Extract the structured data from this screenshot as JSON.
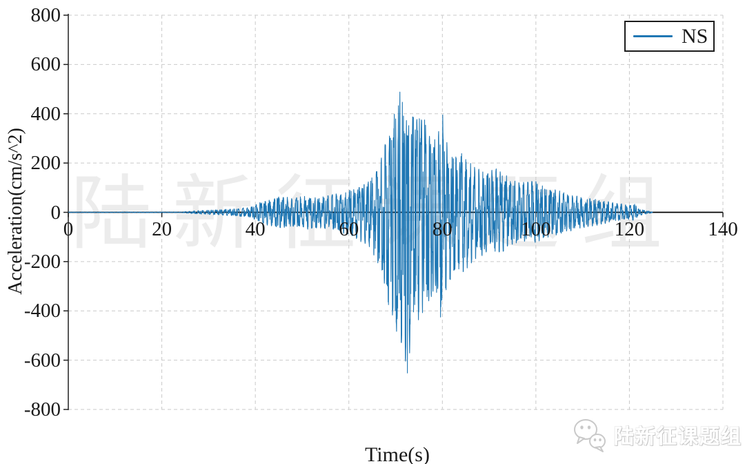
{
  "watermark": {
    "text": "陆新征课题组"
  },
  "footer": {
    "brand_text": "陆新征课题组",
    "icon": "wechat-icon"
  },
  "legend": {
    "label": "NS"
  },
  "chart_data": {
    "type": "line",
    "title": "",
    "xlabel": "Time(s)",
    "ylabel": "Acceleration(cm/s^2)",
    "xlim": [
      0,
      140
    ],
    "ylim": [
      -800,
      800
    ],
    "xticks": [
      0,
      20,
      40,
      60,
      80,
      100,
      120,
      140
    ],
    "yticks": [
      800,
      600,
      400,
      200,
      0,
      -200,
      -400,
      -600,
      -800
    ],
    "grid": "dashed",
    "grid_color": "#c9c9c9",
    "axis_color": "#000000",
    "legend_position": "upper right",
    "series": [
      {
        "name": "NS",
        "color": "#1f77b4"
      }
    ],
    "signal": {
      "description": "Seismic ground-motion NS acceleration record; quiet until ~27 s, growing tremor 40-67 s, main shock burst 68-82 s (peak +490, trough -650 cm/s^2 near 71-73 s), gradual coda decay ending ~125 s",
      "t_start": 0,
      "t_end": 125,
      "dt": 0.04,
      "peak_positive": {
        "t": 70.9,
        "value": 490
      },
      "peak_negative": {
        "t": 72.5,
        "value": -650
      },
      "notable_spikes": [
        [
          70.9,
          488
        ],
        [
          71.3,
          -495
        ],
        [
          72.5,
          -652
        ],
        [
          73.8,
          385
        ],
        [
          75.1,
          380
        ],
        [
          76.2,
          375
        ],
        [
          79.6,
          -425
        ],
        [
          80.2,
          295
        ]
      ],
      "envelope_pos": [
        [
          0,
          1
        ],
        [
          24,
          1.5
        ],
        [
          27,
          6
        ],
        [
          31,
          10
        ],
        [
          35,
          14
        ],
        [
          39,
          22
        ],
        [
          42,
          50
        ],
        [
          45,
          65
        ],
        [
          48,
          60
        ],
        [
          51,
          70
        ],
        [
          54,
          65
        ],
        [
          57,
          75
        ],
        [
          60,
          95
        ],
        [
          63,
          120
        ],
        [
          65,
          150
        ],
        [
          67,
          230
        ],
        [
          68.5,
          330
        ],
        [
          70,
          430
        ],
        [
          71,
          490
        ],
        [
          72,
          440
        ],
        [
          73,
          390
        ],
        [
          74,
          400
        ],
        [
          75,
          395
        ],
        [
          76,
          385
        ],
        [
          77,
          330
        ],
        [
          78,
          300
        ],
        [
          79,
          310
        ],
        [
          80,
          420
        ],
        [
          80.8,
          300
        ],
        [
          82,
          250
        ],
        [
          84,
          255
        ],
        [
          86,
          205
        ],
        [
          88,
          175
        ],
        [
          90,
          165
        ],
        [
          92,
          195
        ],
        [
          94,
          150
        ],
        [
          96,
          130
        ],
        [
          98,
          125
        ],
        [
          100,
          135
        ],
        [
          102,
          110
        ],
        [
          104,
          95
        ],
        [
          106,
          85
        ],
        [
          108,
          75
        ],
        [
          110,
          65
        ],
        [
          112,
          58
        ],
        [
          114,
          50
        ],
        [
          116,
          42
        ],
        [
          118,
          36
        ],
        [
          120,
          30
        ],
        [
          121,
          38
        ],
        [
          122,
          14
        ],
        [
          123.5,
          7
        ],
        [
          125,
          2
        ]
      ],
      "envelope_neg": [
        [
          0,
          1
        ],
        [
          24,
          1.5
        ],
        [
          27,
          6
        ],
        [
          31,
          10
        ],
        [
          35,
          14
        ],
        [
          39,
          22
        ],
        [
          42,
          50
        ],
        [
          45,
          65
        ],
        [
          48,
          60
        ],
        [
          51,
          70
        ],
        [
          54,
          65
        ],
        [
          57,
          75
        ],
        [
          60,
          95
        ],
        [
          63,
          125
        ],
        [
          65,
          160
        ],
        [
          67,
          260
        ],
        [
          68.5,
          400
        ],
        [
          70,
          500
        ],
        [
          71.5,
          560
        ],
        [
          72.6,
          650
        ],
        [
          73.5,
          500
        ],
        [
          74.5,
          460
        ],
        [
          75.5,
          430
        ],
        [
          76.5,
          400
        ],
        [
          77.5,
          360
        ],
        [
          78.5,
          330
        ],
        [
          79.5,
          430
        ],
        [
          80.5,
          350
        ],
        [
          82,
          270
        ],
        [
          84,
          260
        ],
        [
          86,
          215
        ],
        [
          88,
          185
        ],
        [
          90,
          165
        ],
        [
          92,
          175
        ],
        [
          94,
          150
        ],
        [
          96,
          135
        ],
        [
          98,
          125
        ],
        [
          100,
          125
        ],
        [
          102,
          105
        ],
        [
          104,
          95
        ],
        [
          106,
          88
        ],
        [
          108,
          76
        ],
        [
          110,
          66
        ],
        [
          112,
          58
        ],
        [
          114,
          50
        ],
        [
          116,
          42
        ],
        [
          118,
          36
        ],
        [
          120,
          30
        ],
        [
          121,
          34
        ],
        [
          122,
          14
        ],
        [
          123.5,
          7
        ],
        [
          125,
          2
        ]
      ]
    }
  }
}
